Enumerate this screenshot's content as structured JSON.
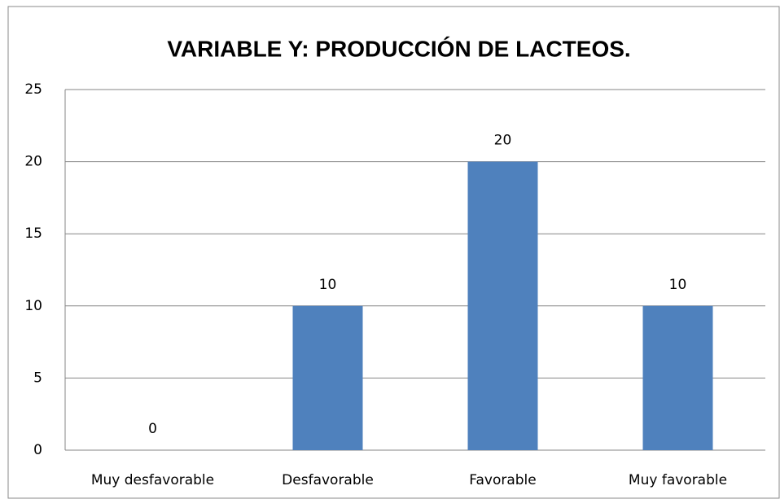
{
  "chart_data": {
    "type": "bar",
    "title": "VARIABLE Y:  PRODUCCIÓN DE LACTEOS.",
    "categories": [
      "Muy desfavorable",
      "Desfavorable",
      "Favorable",
      "Muy favorable"
    ],
    "values": [
      0,
      10,
      20,
      10
    ],
    "color": "#4f81bd",
    "ylim": [
      0,
      25
    ],
    "yticks": [
      0,
      5,
      10,
      15,
      20,
      25
    ],
    "grid": true
  }
}
